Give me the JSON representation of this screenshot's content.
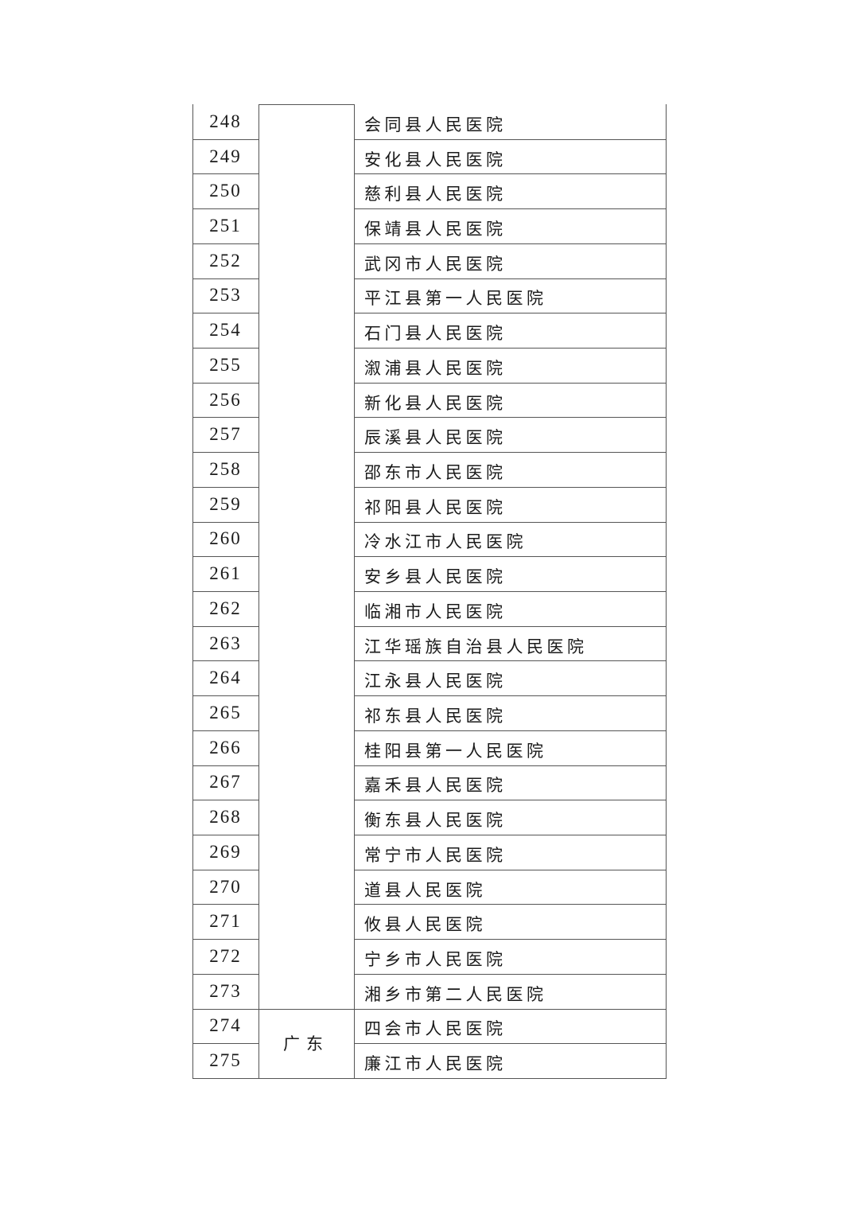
{
  "table": {
    "groups": [
      {
        "region": "",
        "rows": [
          {
            "no": "248",
            "hospital": "会同县人民医院"
          },
          {
            "no": "249",
            "hospital": "安化县人民医院"
          },
          {
            "no": "250",
            "hospital": "慈利县人民医院"
          },
          {
            "no": "251",
            "hospital": "保靖县人民医院"
          },
          {
            "no": "252",
            "hospital": "武冈市人民医院"
          },
          {
            "no": "253",
            "hospital": "平江县第一人民医院"
          },
          {
            "no": "254",
            "hospital": "石门县人民医院"
          },
          {
            "no": "255",
            "hospital": "溆浦县人民医院"
          },
          {
            "no": "256",
            "hospital": "新化县人民医院"
          },
          {
            "no": "257",
            "hospital": "辰溪县人民医院"
          },
          {
            "no": "258",
            "hospital": "邵东市人民医院"
          },
          {
            "no": "259",
            "hospital": "祁阳县人民医院"
          },
          {
            "no": "260",
            "hospital": "冷水江市人民医院"
          },
          {
            "no": "261",
            "hospital": "安乡县人民医院"
          },
          {
            "no": "262",
            "hospital": "临湘市人民医院"
          },
          {
            "no": "263",
            "hospital": "江华瑶族自治县人民医院"
          },
          {
            "no": "264",
            "hospital": "江永县人民医院"
          },
          {
            "no": "265",
            "hospital": "祁东县人民医院"
          },
          {
            "no": "266",
            "hospital": "桂阳县第一人民医院"
          },
          {
            "no": "267",
            "hospital": "嘉禾县人民医院"
          },
          {
            "no": "268",
            "hospital": "衡东县人民医院"
          },
          {
            "no": "269",
            "hospital": "常宁市人民医院"
          },
          {
            "no": "270",
            "hospital": "道县人民医院"
          },
          {
            "no": "271",
            "hospital": "攸县人民医院"
          },
          {
            "no": "272",
            "hospital": "宁乡市人民医院"
          },
          {
            "no": "273",
            "hospital": "湘乡市第二人民医院"
          }
        ]
      },
      {
        "region": "广东",
        "rows": [
          {
            "no": "274",
            "hospital": "四会市人民医院"
          },
          {
            "no": "275",
            "hospital": "廉江市人民医院"
          }
        ]
      }
    ]
  }
}
